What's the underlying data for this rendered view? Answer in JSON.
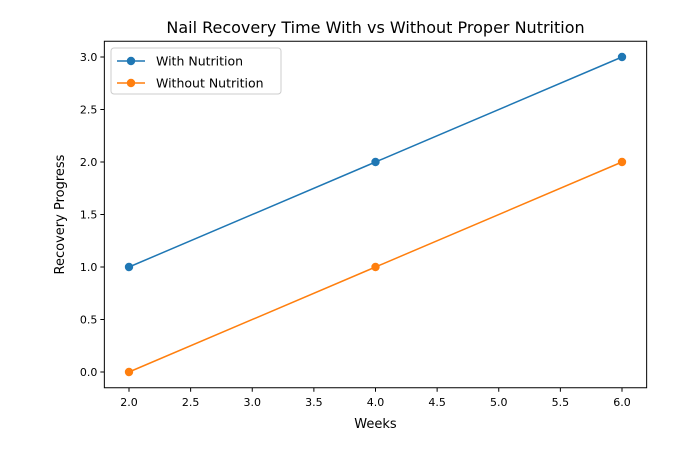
{
  "chart_data": {
    "type": "line",
    "title": "Nail Recovery Time With vs Without Proper Nutrition",
    "xlabel": "Weeks",
    "ylabel": "Recovery Progress",
    "xlim": [
      1.8,
      6.2
    ],
    "ylim": [
      -0.15,
      3.15
    ],
    "xticks": [
      "2.0",
      "2.5",
      "3.0",
      "3.5",
      "4.0",
      "4.5",
      "5.0",
      "5.5",
      "6.0"
    ],
    "yticks": [
      "0.0",
      "0.5",
      "1.0",
      "1.5",
      "2.0",
      "2.5",
      "3.0"
    ],
    "grid": false,
    "legend_placement": "top-left",
    "x": [
      2,
      4,
      6
    ],
    "series": [
      {
        "name": "With Nutrition",
        "values": [
          1,
          2,
          3
        ],
        "color": "#1f77b4",
        "marker": "circle"
      },
      {
        "name": "Without Nutrition",
        "values": [
          0,
          1,
          2
        ],
        "color": "#ff7f0e",
        "marker": "circle"
      }
    ]
  }
}
